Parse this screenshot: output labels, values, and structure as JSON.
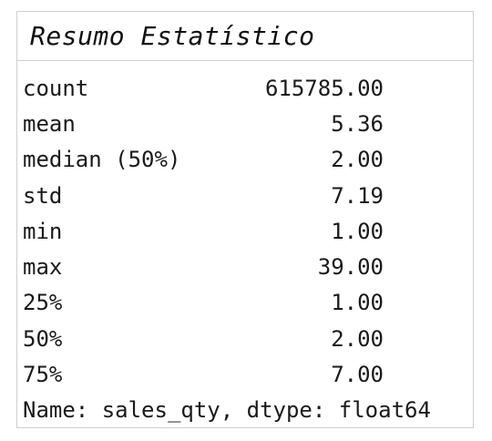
{
  "title": "Resumo Estatístico",
  "stats": [
    {
      "label": "count",
      "value": "615785.00"
    },
    {
      "label": "mean",
      "value": "5.36"
    },
    {
      "label": "median (50%)",
      "value": "2.00"
    },
    {
      "label": "std",
      "value": "7.19"
    },
    {
      "label": "min",
      "value": "1.00"
    },
    {
      "label": "max",
      "value": "39.00"
    },
    {
      "label": "25%",
      "value": "1.00"
    },
    {
      "label": "50%",
      "value": "2.00"
    },
    {
      "label": "75%",
      "value": "7.00"
    }
  ],
  "footer": "Name: sales_qty, dtype: float64"
}
